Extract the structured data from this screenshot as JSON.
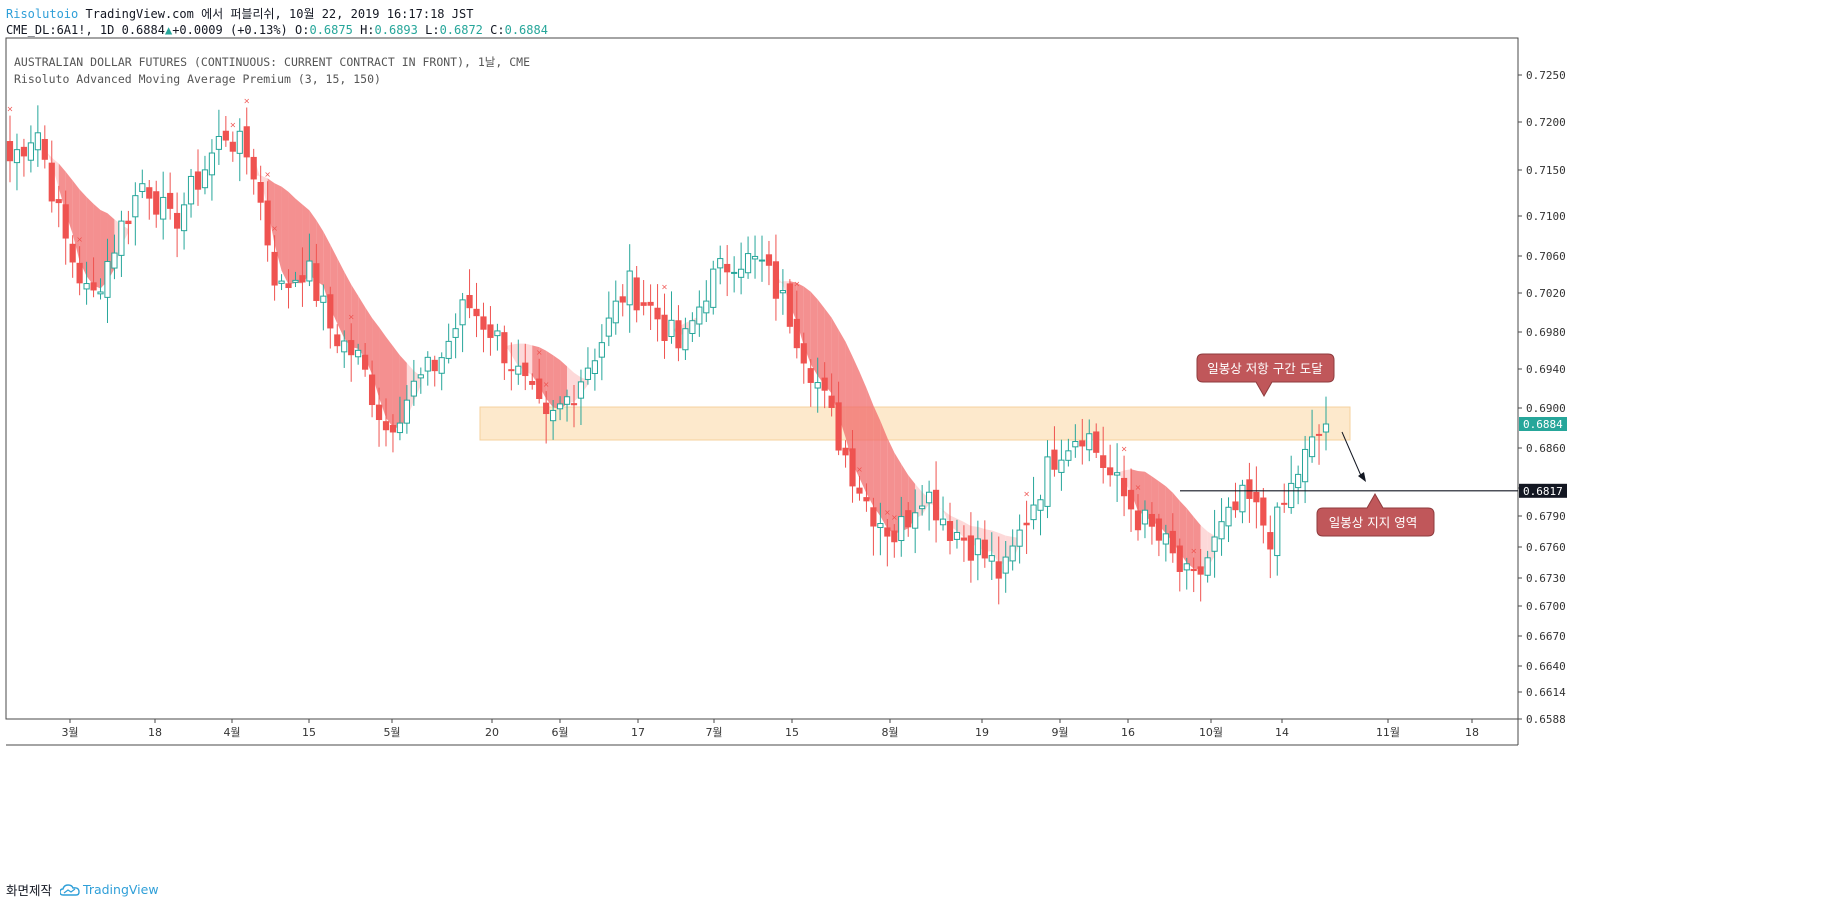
{
  "header": {
    "author": "Risolutoio",
    "rest": "TradingView.com 에서 퍼블리쉬, 10월 22, 2019 16:17:18 JST",
    "symbol": "CME_DL:6A1!, 1D 0.6884",
    "change": "+0.0009 (+0.13%)",
    "o_label": "O:",
    "o_value": "0.6875",
    "h_label": "H:",
    "h_value": "0.6893",
    "l_label": "L:",
    "l_value": "0.6872",
    "c_label": "C:",
    "c_value": "0.6884"
  },
  "legend": {
    "title": "AUSTRALIAN DOLLAR FUTURES (CONTINUOUS: CURRENT CONTRACT IN FRONT), 1날, CME",
    "indicator": "Risoluto Advanced Moving Average Premium (3, 15, 150)"
  },
  "footer": {
    "made_with": "화면제작",
    "brand": "TradingView"
  },
  "colors": {
    "up": "#26a69a",
    "down": "#ef5350",
    "zone": "#fde6c4",
    "band_light": "#fccfcf",
    "band_dark": "#f06b6b",
    "callout": "#c0575a",
    "price_tag": "#26a69a"
  },
  "chart_data": {
    "type": "candlestick",
    "ylim": [
      0.6588,
      0.728
    ],
    "y_ticks": [
      "0.7250",
      "0.7200",
      "0.7150",
      "0.7100",
      "0.7060",
      "0.7020",
      "0.6980",
      "0.6940",
      "0.6900",
      "0.6860",
      "0.6820",
      "0.6790",
      "0.6760",
      "0.6730",
      "0.6700",
      "0.6670",
      "0.6640",
      "0.6614",
      "0.6588"
    ],
    "x_ticks": [
      "3월",
      "18",
      "4월",
      "15",
      "5월",
      "20",
      "6월",
      "17",
      "7월",
      "15",
      "8월",
      "19",
      "9월",
      "16",
      "10월",
      "14",
      "11월",
      "18"
    ],
    "last_price": "0.6884",
    "support_line": {
      "value": 0.6817,
      "label": "0.6817"
    },
    "resistance_zone": [
      0.6868,
      0.6901
    ],
    "callouts": [
      {
        "text": "일봉상 저항 구간 도달"
      },
      {
        "text": "일봉상 지지 영역"
      }
    ],
    "anchors": [
      [
        0.7135,
        0.716
      ],
      [
        0.717,
        0.7195
      ],
      [
        0.71,
        0.708
      ],
      [
        0.709,
        0.701
      ],
      [
        0.703,
        0.708
      ],
      [
        0.711,
        0.714
      ],
      [
        0.713,
        0.709
      ],
      [
        0.712,
        0.714
      ],
      [
        0.714,
        0.719
      ],
      [
        0.7185,
        0.716
      ],
      [
        0.7155,
        0.702
      ],
      [
        0.701,
        0.705
      ],
      [
        0.704,
        0.698
      ],
      [
        0.699,
        0.695
      ],
      [
        0.6945,
        0.688
      ],
      [
        0.6875,
        0.692
      ],
      [
        0.6915,
        0.695
      ],
      [
        0.695,
        0.701
      ],
      [
        0.7,
        0.698
      ],
      [
        0.697,
        0.693
      ],
      [
        0.692,
        0.688
      ],
      [
        0.688,
        0.692
      ],
      [
        0.692,
        0.697
      ],
      [
        0.6975,
        0.703
      ],
      [
        0.7035,
        0.7
      ],
      [
        0.7,
        0.696
      ],
      [
        0.697,
        0.703
      ],
      [
        0.704,
        0.706
      ],
      [
        0.707,
        0.705
      ],
      [
        0.705,
        0.7
      ],
      [
        0.699,
        0.693
      ],
      [
        0.6925,
        0.686
      ],
      [
        0.685,
        0.68
      ],
      [
        0.679,
        0.677
      ],
      [
        0.678,
        0.682
      ],
      [
        0.681,
        0.678
      ],
      [
        0.678,
        0.676
      ],
      [
        0.676,
        0.673
      ],
      [
        0.673,
        0.68
      ],
      [
        0.682,
        0.686
      ],
      [
        0.686,
        0.688
      ],
      [
        0.689,
        0.683
      ],
      [
        0.682,
        0.679
      ],
      [
        0.68,
        0.676
      ],
      [
        0.674,
        0.672
      ],
      [
        0.673,
        0.677
      ],
      [
        0.677,
        0.681
      ],
      [
        0.68,
        0.677
      ],
      [
        0.6775,
        0.684
      ],
      [
        0.685,
        0.6884
      ]
    ]
  }
}
